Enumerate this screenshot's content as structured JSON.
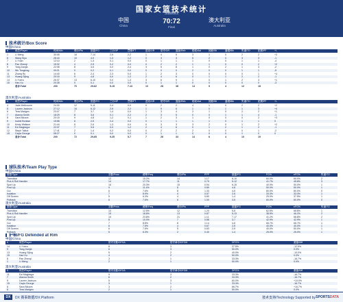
{
  "header": {
    "title": "国家女篮技术统计",
    "subtitle": "Statistics",
    "home": {
      "name": "中国",
      "en": "China"
    },
    "score": "70:72",
    "score_label": "Final",
    "away": {
      "name": "澳大利亚",
      "en": "Australia"
    }
  },
  "sections": {
    "box_score": "技术统计/Box Score",
    "team_play": "球队技术/Team Play Type",
    "defended_rim": "护框/FG Defended at Rim"
  },
  "team_labels": {
    "china": "中国/China",
    "australia": "澳大利亚/Australia"
  },
  "box_score": {
    "columns": [
      "#",
      "球员/Player",
      "时间/Min",
      "得分/Pts",
      "投篮/FG",
      "三分/3P",
      "罚球/FT",
      "进攻/OR",
      "防守/DR",
      "篮板/Reb",
      "助攻/Ast",
      "抢断/Stl",
      "盖帽/Blk",
      "失误/TO",
      "犯规/PF",
      "+/-"
    ],
    "china": [
      [
        "1",
        "Li Meng",
        "30:05",
        "18",
        "7-14",
        "2-5",
        "2-2",
        "1",
        "4",
        "5",
        "3",
        "1",
        "0",
        "2",
        "2",
        "+3"
      ],
      [
        "6",
        "Wang Siyu",
        "28:44",
        "10",
        "4-9",
        "1-3",
        "1-2",
        "0",
        "3",
        "3",
        "5",
        "2",
        "0",
        "3",
        "3",
        "-1"
      ],
      [
        "7",
        "Li Yuan",
        "12:10",
        "2",
        "1-3",
        "0-1",
        "0-0",
        "0",
        "1",
        "1",
        "1",
        "0",
        "0",
        "1",
        "1",
        "-4"
      ],
      [
        "8",
        "Pan Zhenqi",
        "15:32",
        "4",
        "2-5",
        "0-2",
        "0-0",
        "0",
        "2",
        "2",
        "1",
        "1",
        "0",
        "0",
        "2",
        "+2"
      ],
      [
        "9",
        "Tang Jianjia",
        "22:08",
        "8",
        "3-6",
        "0-0",
        "2-4",
        "3",
        "5",
        "8",
        "1",
        "0",
        "2",
        "1",
        "3",
        "-2"
      ],
      [
        "10",
        "Wu Tongtong",
        "09:21",
        "0",
        "0-2",
        "0-1",
        "0-0",
        "0",
        "0",
        "0",
        "2",
        "0",
        "0",
        "1",
        "1",
        "-5"
      ],
      [
        "11",
        "Zhang Ru",
        "14:40",
        "6",
        "2-4",
        "2-3",
        "0-0",
        "1",
        "2",
        "3",
        "0",
        "0",
        "0",
        "0",
        "1",
        "+4"
      ],
      [
        "13",
        "Huang Sijing",
        "20:15",
        "9",
        "4-8",
        "0-0",
        "1-2",
        "2",
        "4",
        "6",
        "0",
        "1",
        "1",
        "2",
        "2",
        "-1"
      ],
      [
        "14",
        "Li Yueru",
        "26:37",
        "13",
        "6-10",
        "0-0",
        "1-3",
        "3",
        "6",
        "9",
        "1",
        "0",
        "1",
        "2",
        "3",
        "+1"
      ],
      [
        "15",
        "Han Xu",
        "20:28",
        "0",
        "0-1",
        "0-0",
        "0-0",
        "0",
        "1",
        "1",
        "0",
        "0",
        "0",
        "0",
        "0",
        "-3"
      ]
    ],
    "china_total": [
      "",
      "总计/Total",
      "200",
      "70",
      "29-62",
      "5-15",
      "7-13",
      "10",
      "28",
      "38",
      "14",
      "5",
      "4",
      "12",
      "18",
      ""
    ],
    "australia": [
      [
        "4",
        "Jade Melbourne",
        "24:30",
        "12",
        "5-11",
        "2-4",
        "0-0",
        "0",
        "2",
        "2",
        "4",
        "1",
        "0",
        "2",
        "2",
        "+2"
      ],
      [
        "5",
        "Lauren Jackson",
        "27:12",
        "16",
        "6-12",
        "2-5",
        "2-2",
        "1",
        "5",
        "6",
        "1",
        "0",
        "1",
        "1",
        "3",
        "+4"
      ],
      [
        "6",
        "Tess Madgen",
        "23:07",
        "7",
        "3-7",
        "1-4",
        "0-0",
        "1",
        "3",
        "4",
        "2",
        "1",
        "0",
        "2",
        "2",
        "+1"
      ],
      [
        "7",
        "Alanna Smith",
        "18:29",
        "8",
        "3-6",
        "0-1",
        "2-2",
        "2",
        "3",
        "5",
        "0",
        "0",
        "1",
        "1",
        "4",
        "-1"
      ],
      [
        "8",
        "Sara Blicavs",
        "20:15",
        "9",
        "4-8",
        "1-2",
        "0-1",
        "1",
        "2",
        "3",
        "1",
        "0",
        "0",
        "0",
        "2",
        "+3"
      ],
      [
        "9",
        "Isobel Borlase",
        "15:58",
        "6",
        "2-5",
        "2-4",
        "0-0",
        "0",
        "1",
        "1",
        "1",
        "1",
        "0",
        "1",
        "1",
        "0"
      ],
      [
        "10",
        "Kristy Wallace",
        "21:44",
        "5",
        "2-6",
        "1-3",
        "0-0",
        "0",
        "3",
        "3",
        "3",
        "2",
        "0",
        "1",
        "2",
        "+2"
      ],
      [
        "11",
        "Ezi Magbegor",
        "22:37",
        "7",
        "3-5",
        "0-0",
        "1-2",
        "2",
        "4",
        "6",
        "0",
        "1",
        "2",
        "1",
        "2",
        "-1"
      ],
      [
        "12",
        "Steph Talbot",
        "17:41",
        "2",
        "1-4",
        "0-2",
        "0-0",
        "0",
        "2",
        "2",
        "2",
        "0",
        "0",
        "0",
        "1",
        "-2"
      ],
      [
        "15",
        "Cayla George",
        "08:27",
        "0",
        "0-1",
        "0-0",
        "0-0",
        "0",
        "1",
        "1",
        "0",
        "0",
        "0",
        "1",
        "0",
        "0"
      ]
    ],
    "australia_total": [
      "",
      "总计/Total",
      "200",
      "72",
      "29-65",
      "9-25",
      "5-7",
      "7",
      "26",
      "33",
      "14",
      "6",
      "4",
      "10",
      "19",
      ""
    ]
  },
  "team_play": {
    "columns": [
      "类型/Type",
      "次数/Poss",
      "频率/Freq",
      "得分/Pts",
      "PPP",
      "投篮/FG",
      "FG%",
      "eFG%",
      "失误/TO"
    ],
    "china": [
      [
        "Transition",
        "12",
        "15.2%",
        "14",
        "1.17",
        "6-10",
        "60.0%",
        "65.0%",
        "2"
      ],
      [
        "Pick & Roll Handler",
        "14",
        "17.7%",
        "11",
        "0.79",
        "5-12",
        "41.7%",
        "45.8%",
        "3"
      ],
      [
        "Spot Up",
        "16",
        "20.3%",
        "15",
        "0.94",
        "6-15",
        "40.0%",
        "50.0%",
        "1"
      ],
      [
        "Post Up",
        "9",
        "11.4%",
        "8",
        "0.89",
        "4-8",
        "50.0%",
        "50.0%",
        "1"
      ],
      [
        "Cut",
        "6",
        "7.6%",
        "8",
        "1.33",
        "4-5",
        "80.0%",
        "80.0%",
        "0"
      ],
      [
        "Isolation",
        "7",
        "8.9%",
        "4",
        "0.57",
        "2-6",
        "33.3%",
        "33.3%",
        "1"
      ],
      [
        "Off Screen",
        "5",
        "6.3%",
        "4",
        "0.80",
        "1-4",
        "25.0%",
        "37.5%",
        "1"
      ],
      [
        "Putback",
        "6",
        "7.6%",
        "6",
        "1.00",
        "3-5",
        "60.0%",
        "60.0%",
        "0"
      ]
    ],
    "australia": [
      [
        "Transition",
        "10",
        "12.5%",
        "12",
        "1.20",
        "5-8",
        "62.5%",
        "68.8%",
        "1"
      ],
      [
        "Pick & Roll Handler",
        "15",
        "18.8%",
        "13",
        "0.87",
        "5-13",
        "38.5%",
        "46.2%",
        "2"
      ],
      [
        "Spot Up",
        "19",
        "23.8%",
        "21",
        "1.11",
        "7-17",
        "41.2%",
        "58.8%",
        "2"
      ],
      [
        "Post Up",
        "8",
        "10.0%",
        "7",
        "0.88",
        "3-7",
        "42.9%",
        "42.9%",
        "1"
      ],
      [
        "Cut",
        "7",
        "8.8%",
        "8",
        "1.14",
        "4-6",
        "66.7%",
        "66.7%",
        "1"
      ],
      [
        "Isolation",
        "6",
        "7.5%",
        "4",
        "0.67",
        "2-5",
        "40.0%",
        "40.0%",
        "1"
      ],
      [
        "Off Screen",
        "6",
        "7.5%",
        "5",
        "0.83",
        "2-5",
        "40.0%",
        "50.0%",
        "1"
      ],
      [
        "Putback",
        "5",
        "6.3%",
        "2",
        "0.40",
        "1-4",
        "25.0%",
        "25.0%",
        "1"
      ]
    ]
  },
  "defended_rim": {
    "columns": [
      "#",
      "球员/Player",
      "防守次数/DFGA",
      "防守命中/DFGM",
      "DFG%",
      "差值/Diff"
    ],
    "china": [
      [
        "14",
        "Li Yueru",
        "8",
        "3",
        "37.5%",
        "-12.5%"
      ],
      [
        "9",
        "Tang Jianjia",
        "6",
        "3",
        "50.0%",
        "0.0%"
      ],
      [
        "13",
        "Huang Sijing",
        "5",
        "2",
        "40.0%",
        "-10.0%"
      ],
      [
        "15",
        "Han Xu",
        "4",
        "2",
        "50.0%",
        "0.0%"
      ],
      [
        "8",
        "Pan Zhenqi",
        "3",
        "1",
        "33.3%",
        "-16.7%"
      ],
      [
        "1",
        "Li Meng",
        "2",
        "1",
        "50.0%",
        "0.0%"
      ]
    ],
    "australia": [
      [
        "11",
        "Ezi Magbegor",
        "9",
        "3",
        "33.3%",
        "-16.7%"
      ],
      [
        "7",
        "Alanna Smith",
        "6",
        "2",
        "33.3%",
        "-16.7%"
      ],
      [
        "5",
        "Lauren Jackson",
        "5",
        "3",
        "60.0%",
        "+10.0%"
      ],
      [
        "15",
        "Cayla George",
        "3",
        "1",
        "33.3%",
        "-16.7%"
      ],
      [
        "8",
        "Sara Blicavs",
        "3",
        "2",
        "66.7%",
        "+16.7%"
      ],
      [
        "6",
        "Tess Madgen",
        "2",
        "1",
        "50.0%",
        "0.0%"
      ]
    ]
  },
  "footer": {
    "logo": "DX",
    "platform": "DX 赛事数据/DX Platform",
    "tech": "技术支持/Technology Supported by",
    "brand_a": "SPORTS",
    "brand_b": "DATA"
  }
}
